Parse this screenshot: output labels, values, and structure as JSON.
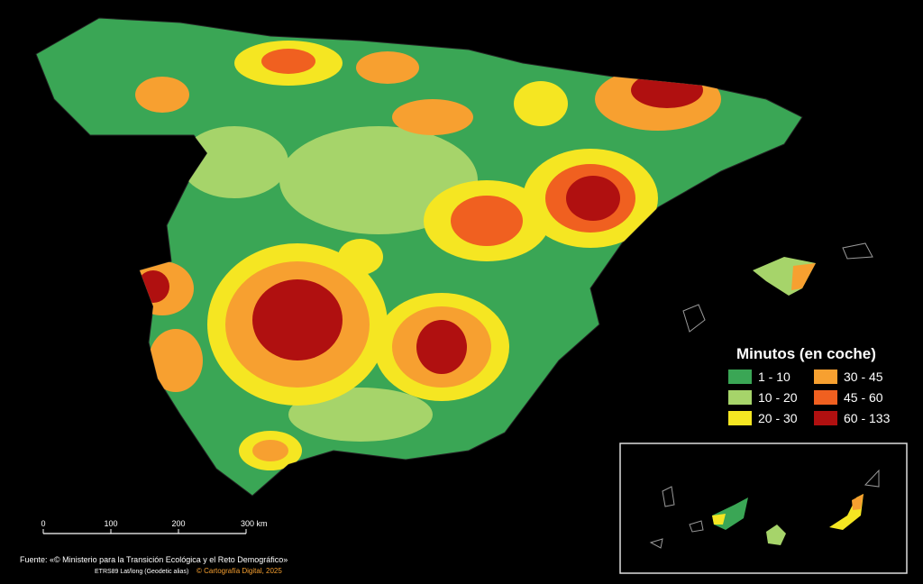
{
  "legend": {
    "title": "Minutos (en coche)",
    "items": [
      {
        "label": "1 - 10",
        "color": "#3aa655"
      },
      {
        "label": "10 - 20",
        "color": "#a6d46a"
      },
      {
        "label": "20 - 30",
        "color": "#f5e622"
      },
      {
        "label": "30 - 45",
        "color": "#f7a030"
      },
      {
        "label": "45 - 60",
        "color": "#f06020"
      },
      {
        "label": "60 - 133",
        "color": "#b01010"
      }
    ]
  },
  "scale_bar": {
    "labels": [
      "0",
      "100",
      "200",
      "300 km"
    ]
  },
  "source": "Fuente: «© Ministerio para la Transición Ecológica y el Reto Demográfico»",
  "projection": "ETRS89   Lat/long (Geodetic alias)",
  "credit": "© Cartografía Digital, 2025"
}
